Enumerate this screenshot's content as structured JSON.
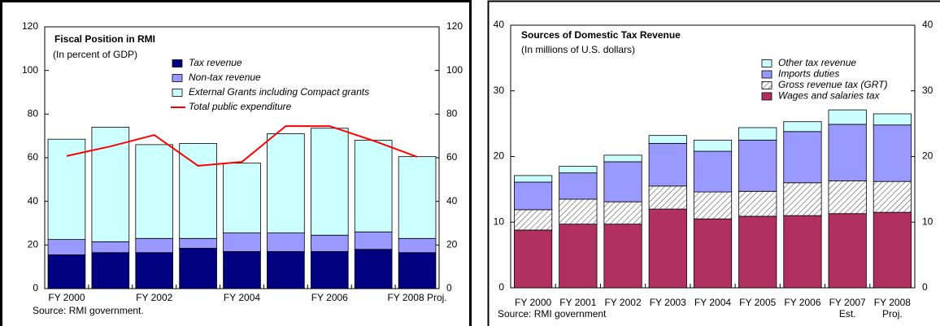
{
  "chart_data": [
    {
      "type": "bar",
      "stacked": true,
      "title": "Fiscal Position in RMI",
      "subtitle": "(In percent of GDP)",
      "source": "Source: RMI government.",
      "categories": [
        "FY 2000",
        null,
        "FY 2002",
        null,
        "FY 2004",
        null,
        "FY 2006",
        null,
        "FY 2008 Proj."
      ],
      "series": [
        {
          "name": "Tax revenue",
          "color": "#000080",
          "values": [
            15.5,
            16.5,
            16.5,
            18.5,
            17,
            17,
            17,
            18,
            16.5
          ]
        },
        {
          "name": "Non-tax revenue",
          "color": "#9999ff",
          "values": [
            7,
            5,
            6.5,
            4.5,
            8.5,
            8.5,
            7.5,
            8,
            6.5
          ]
        },
        {
          "name": "External Grants including Compact grants",
          "color": "#ccffff",
          "values": [
            46,
            52.5,
            43,
            43.5,
            32,
            45.5,
            49,
            42,
            37.5
          ]
        },
        {
          "name": "Total public expenditure",
          "type": "line",
          "color": "#ff0000",
          "values": [
            60.8,
            65.2,
            70.4,
            56.3,
            58.1,
            74.5,
            74.5,
            67.8,
            60.4
          ]
        }
      ],
      "ylim": [
        0,
        120
      ],
      "yticks": [
        0,
        20,
        40,
        60,
        80,
        100,
        120
      ],
      "y2lim": [
        0,
        120
      ],
      "y2ticks": [
        0,
        20,
        40,
        60,
        80,
        100,
        120
      ]
    },
    {
      "type": "bar",
      "stacked": true,
      "title": "Sources of Domestic Tax Revenue",
      "subtitle": "(In millions of U.S. dollars)",
      "source": "Source: RMI government",
      "categories": [
        "FY 2000",
        "FY 2001",
        "FY 2002",
        "FY 2003",
        "FY 2004",
        "FY 2005",
        "FY 2006",
        "FY 2007",
        "FY 2008"
      ],
      "category_notes": [
        null,
        null,
        null,
        null,
        null,
        null,
        null,
        "Est.",
        "Proj."
      ],
      "series": [
        {
          "name": "Wages and salaries tax",
          "color": "#b03060",
          "values": [
            8.8,
            9.7,
            9.7,
            12.0,
            10.5,
            10.9,
            11.0,
            11.3,
            11.5
          ]
        },
        {
          "name": "Gross revenue tax (GRT)",
          "color": "#ffffff",
          "pattern": "hatch",
          "values": [
            3.1,
            3.8,
            3.4,
            3.5,
            4.1,
            3.8,
            5.0,
            5.0,
            4.7
          ]
        },
        {
          "name": "Imports duties",
          "color": "#9999ff",
          "values": [
            4.2,
            4.0,
            6.1,
            6.5,
            6.2,
            7.8,
            7.8,
            8.6,
            8.6
          ]
        },
        {
          "name": "Other tax revenue",
          "color": "#ccffff",
          "values": [
            1.0,
            1.0,
            1.0,
            1.2,
            1.7,
            1.9,
            1.5,
            2.2,
            1.7
          ]
        }
      ],
      "ylim": [
        0,
        40
      ],
      "yticks": [
        0,
        10,
        20,
        30,
        40
      ],
      "y2lim": [
        0,
        40
      ],
      "y2ticks": [
        0,
        10,
        20,
        30,
        40
      ]
    }
  ]
}
